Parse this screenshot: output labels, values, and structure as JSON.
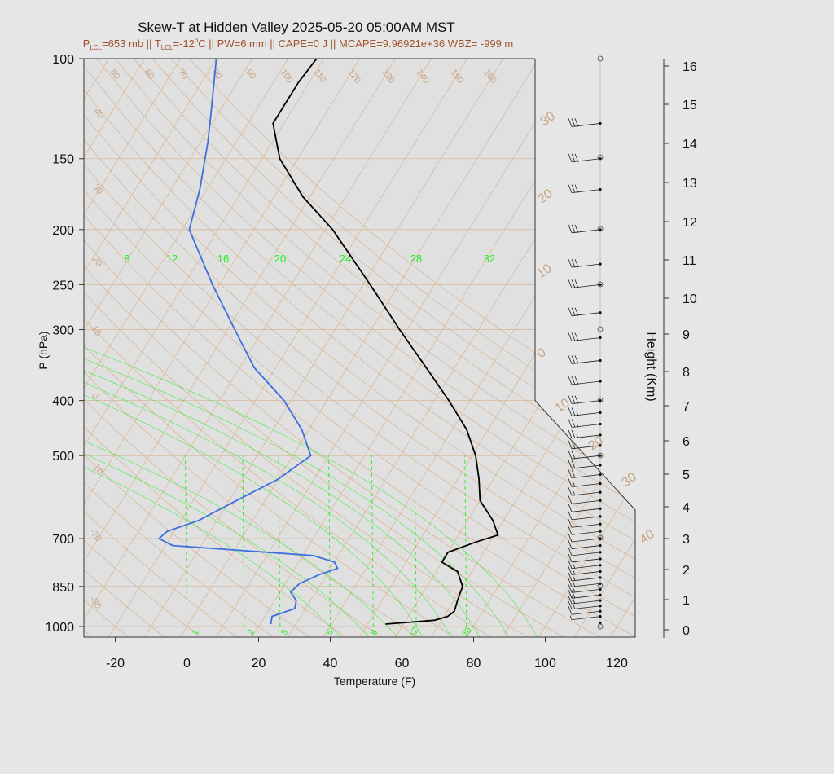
{
  "title": "Skew-T at Hidden Valley 2025-05-20 05:00AM MST",
  "subtitle_parts": {
    "p_lcl_label_main": "P",
    "p_lcl_label_sub": "LCL",
    "p_lcl_value": "=653 mb || ",
    "t_lcl_label_main": "T",
    "t_lcl_label_sub": "LCL",
    "t_lcl_value": "=-12",
    "t_lcl_deg": "o",
    "rest": "C || PW=6 mm || CAPE=0 J || MCAPE=9.96921e+36 WBZ= -999 m"
  },
  "colors": {
    "temperature": "#000000",
    "dewpoint": "#3b6fe0",
    "mixing_ratio": "#22ee22",
    "isotherm_grid": "#d8b898",
    "frame": "#333333",
    "subtitle": "#a0522d"
  },
  "chart_data": {
    "type": "line",
    "title": "Skew-T at Hidden Valley 2025-05-20 05:00AM MST",
    "xlabel": "Temperature (F)",
    "ylabel": "P (hPa)",
    "ylabel_right": "Height (Km)",
    "y_scale": "log",
    "ylim": [
      1050,
      100
    ],
    "xlim_at_1000hpa": [
      -25,
      125
    ],
    "pressure_ticks": [
      "100",
      "150",
      "200",
      "250",
      "300",
      "400",
      "500",
      "700",
      "850",
      "1000"
    ],
    "temperature_ticks": [
      "-20",
      "0",
      "20",
      "40",
      "60",
      "80",
      "100",
      "120"
    ],
    "height_ticks": [
      "0",
      "1",
      "2",
      "3",
      "4",
      "5",
      "6",
      "7",
      "8",
      "9",
      "10",
      "11",
      "12",
      "13",
      "14",
      "15",
      "16"
    ],
    "isotherm_labels": [
      "50",
      "60",
      "70",
      "80",
      "90",
      "100",
      "110",
      "120",
      "130",
      "140",
      "150",
      "160",
      "40",
      "30",
      "20",
      "10",
      "0",
      "-10",
      "-20",
      "-30"
    ],
    "mixing_ratio_top_labels": [
      "8",
      "12",
      "16",
      "20",
      "24",
      "28",
      "32"
    ],
    "mixing_ratio_bottom_labels": [
      "1",
      "2",
      "3",
      "5",
      "8",
      "12",
      "20"
    ],
    "dry_adiabat_labels": [
      "30",
      "20",
      "10",
      "0",
      "10",
      "20",
      "30",
      "40"
    ],
    "grid": true,
    "series": [
      {
        "name": "Temperature",
        "points": [
          {
            "p": 990,
            "t": 55
          },
          {
            "p": 975,
            "t": 68
          },
          {
            "p": 960,
            "t": 71
          },
          {
            "p": 940,
            "t": 72
          },
          {
            "p": 900,
            "t": 71
          },
          {
            "p": 850,
            "t": 70
          },
          {
            "p": 800,
            "t": 66
          },
          {
            "p": 770,
            "t": 60
          },
          {
            "p": 740,
            "t": 60
          },
          {
            "p": 710,
            "t": 66
          },
          {
            "p": 690,
            "t": 71
          },
          {
            "p": 650,
            "t": 67
          },
          {
            "p": 600,
            "t": 60
          },
          {
            "p": 550,
            "t": 56
          },
          {
            "p": 500,
            "t": 51
          },
          {
            "p": 450,
            "t": 44
          },
          {
            "p": 400,
            "t": 34
          },
          {
            "p": 350,
            "t": 22
          },
          {
            "p": 300,
            "t": 8
          },
          {
            "p": 250,
            "t": -8
          },
          {
            "p": 200,
            "t": -28
          },
          {
            "p": 175,
            "t": -42
          },
          {
            "p": 150,
            "t": -55
          },
          {
            "p": 130,
            "t": -63
          },
          {
            "p": 110,
            "t": -63
          },
          {
            "p": 100,
            "t": -62
          }
        ]
      },
      {
        "name": "Dewpoint",
        "points": [
          {
            "p": 990,
            "t": 23
          },
          {
            "p": 960,
            "t": 22
          },
          {
            "p": 930,
            "t": 27
          },
          {
            "p": 900,
            "t": 26
          },
          {
            "p": 870,
            "t": 23
          },
          {
            "p": 840,
            "t": 24
          },
          {
            "p": 810,
            "t": 28
          },
          {
            "p": 790,
            "t": 32
          },
          {
            "p": 770,
            "t": 30
          },
          {
            "p": 750,
            "t": 23
          },
          {
            "p": 720,
            "t": -18
          },
          {
            "p": 700,
            "t": -23
          },
          {
            "p": 680,
            "t": -22
          },
          {
            "p": 650,
            "t": -15
          },
          {
            "p": 600,
            "t": -8
          },
          {
            "p": 550,
            "t": 0
          },
          {
            "p": 500,
            "t": 5
          },
          {
            "p": 450,
            "t": -2
          },
          {
            "p": 400,
            "t": -12
          },
          {
            "p": 350,
            "t": -26
          },
          {
            "p": 300,
            "t": -38
          },
          {
            "p": 250,
            "t": -52
          },
          {
            "p": 200,
            "t": -68
          },
          {
            "p": 170,
            "t": -72
          },
          {
            "p": 140,
            "t": -78
          },
          {
            "p": 125,
            "t": -82
          },
          {
            "p": 100,
            "t": -90
          }
        ]
      }
    ],
    "wind_barbs": [
      {
        "p": 985,
        "spd_kt": 0
      },
      {
        "p": 960,
        "spd_kt": 5
      },
      {
        "p": 940,
        "spd_kt": 10
      },
      {
        "p": 920,
        "spd_kt": 15
      },
      {
        "p": 900,
        "spd_kt": 20
      },
      {
        "p": 880,
        "spd_kt": 20
      },
      {
        "p": 860,
        "spd_kt": 15
      },
      {
        "p": 840,
        "spd_kt": 15
      },
      {
        "p": 820,
        "spd_kt": 15
      },
      {
        "p": 800,
        "spd_kt": 15
      },
      {
        "p": 780,
        "spd_kt": 15
      },
      {
        "p": 760,
        "spd_kt": 10
      },
      {
        "p": 740,
        "spd_kt": 10
      },
      {
        "p": 720,
        "spd_kt": 10
      },
      {
        "p": 700,
        "spd_kt": 10
      },
      {
        "p": 680,
        "spd_kt": 10
      },
      {
        "p": 660,
        "spd_kt": 10
      },
      {
        "p": 640,
        "spd_kt": 10
      },
      {
        "p": 620,
        "spd_kt": 10
      },
      {
        "p": 600,
        "spd_kt": 10
      },
      {
        "p": 580,
        "spd_kt": 15
      },
      {
        "p": 560,
        "spd_kt": 15
      },
      {
        "p": 540,
        "spd_kt": 20
      },
      {
        "p": 520,
        "spd_kt": 20
      },
      {
        "p": 500,
        "spd_kt": 20
      },
      {
        "p": 480,
        "spd_kt": 20
      },
      {
        "p": 460,
        "spd_kt": 25
      },
      {
        "p": 440,
        "spd_kt": 25
      },
      {
        "p": 420,
        "spd_kt": 25
      },
      {
        "p": 400,
        "spd_kt": 30
      },
      {
        "p": 370,
        "spd_kt": 30
      },
      {
        "p": 340,
        "spd_kt": 30
      },
      {
        "p": 310,
        "spd_kt": 30
      },
      {
        "p": 280,
        "spd_kt": 30
      },
      {
        "p": 250,
        "spd_kt": 30
      },
      {
        "p": 230,
        "spd_kt": 30
      },
      {
        "p": 200,
        "spd_kt": 30
      },
      {
        "p": 170,
        "spd_kt": 30
      },
      {
        "p": 150,
        "spd_kt": 30
      },
      {
        "p": 130,
        "spd_kt": 30
      }
    ]
  }
}
